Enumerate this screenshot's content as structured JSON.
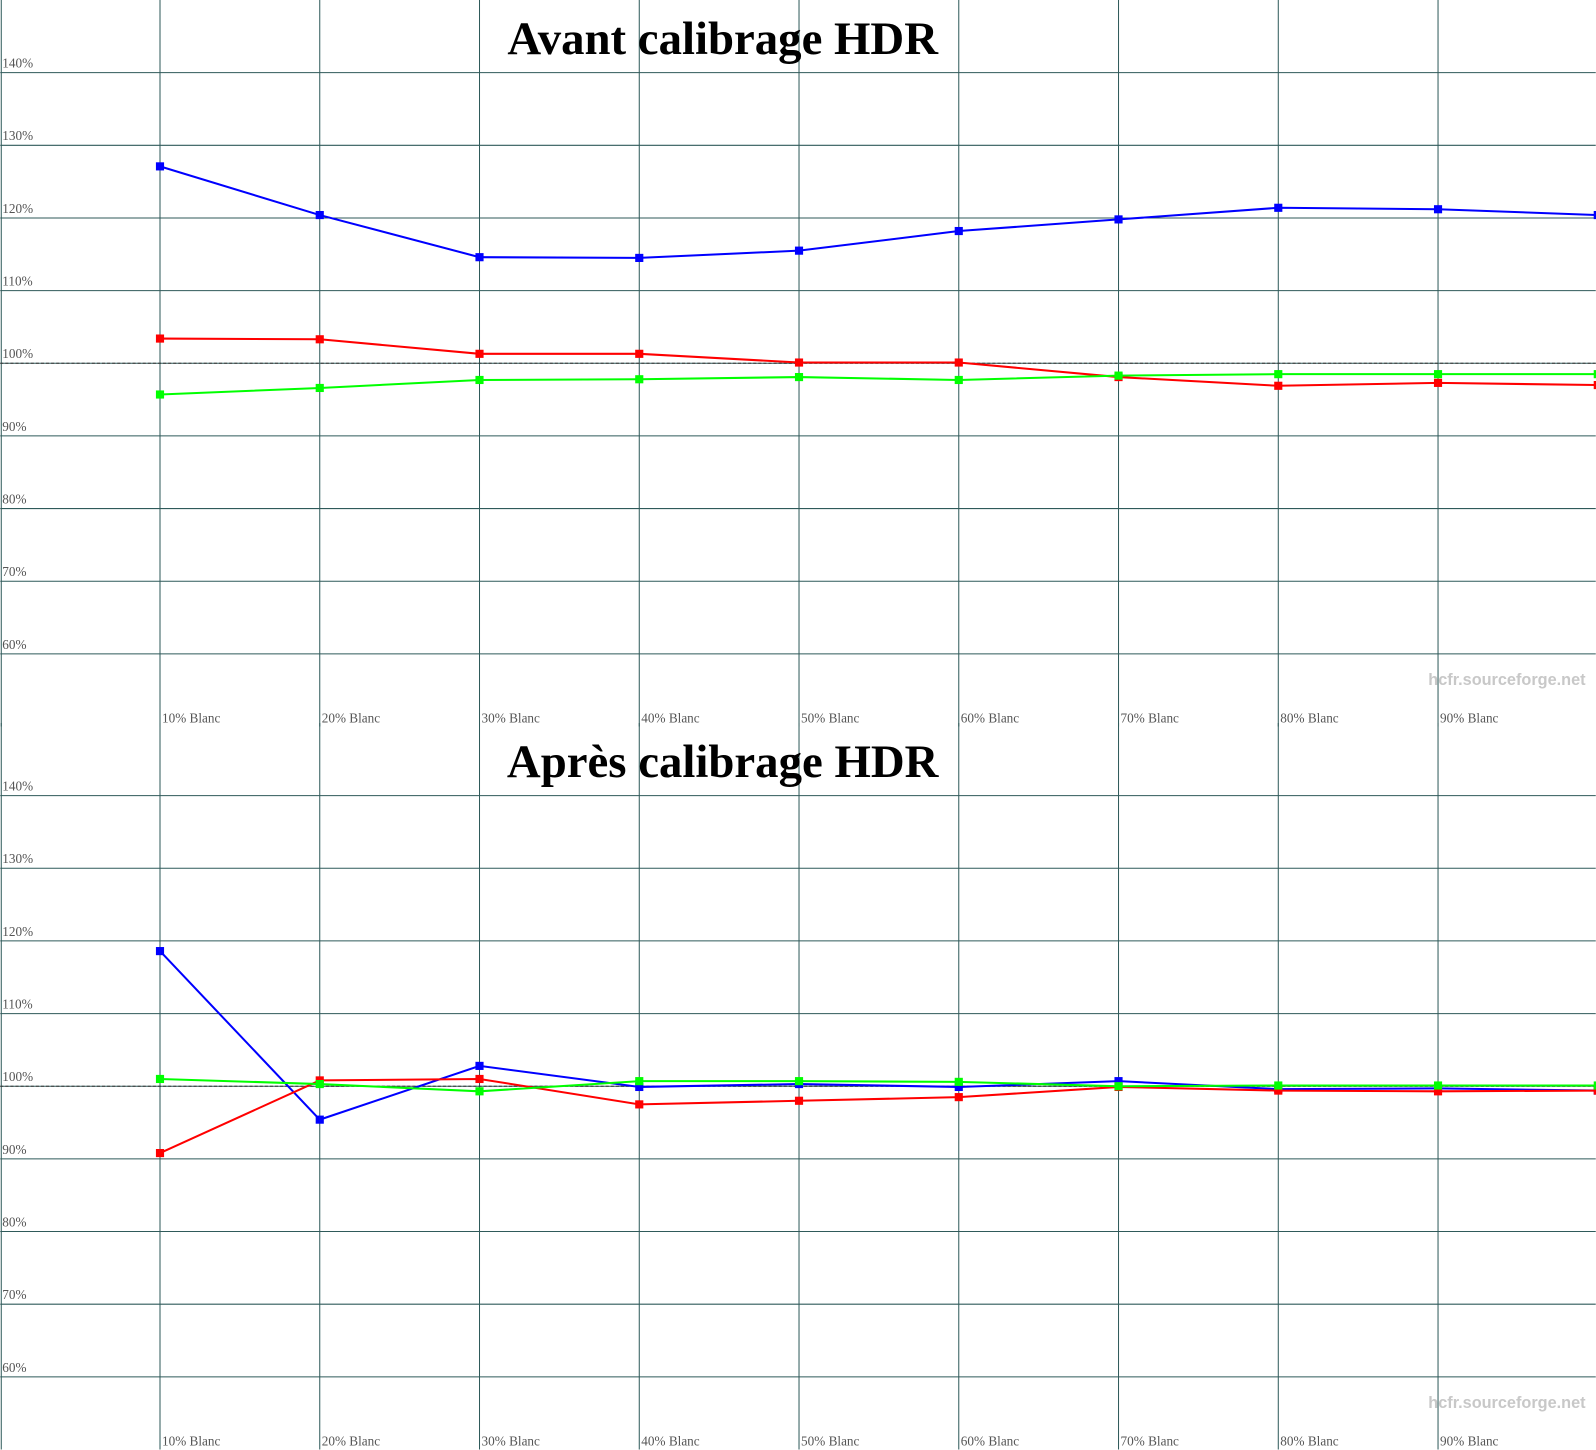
{
  "chart_data": [
    {
      "type": "line",
      "title": "Avant calibrage HDR",
      "watermark": "hcfr.sourceforge.net",
      "categories": [
        "10% Blanc",
        "20% Blanc",
        "30% Blanc",
        "40% Blanc",
        "50% Blanc",
        "60% Blanc",
        "70% Blanc",
        "80% Blanc",
        "90% Blanc",
        null
      ],
      "series": [
        {
          "color": "#0000ff",
          "values": [
            127.1,
            120.4,
            114.6,
            114.5,
            115.5,
            118.2,
            119.8,
            121.4,
            121.2,
            120.4
          ]
        },
        {
          "color": "#ff0000",
          "values": [
            103.4,
            103.3,
            101.3,
            101.3,
            100.1,
            100.1,
            98.1,
            96.9,
            97.3,
            97.0
          ]
        },
        {
          "color": "#00ff00",
          "values": [
            95.7,
            96.6,
            97.7,
            97.8,
            98.1,
            97.7,
            98.3,
            98.5,
            98.5,
            98.5
          ]
        }
      ],
      "ylim": [
        50,
        150
      ],
      "yticks": [
        {
          "value": 60,
          "label": "60%"
        },
        {
          "value": 70,
          "label": "70%"
        },
        {
          "value": 80,
          "label": "80%"
        },
        {
          "value": 90,
          "label": "90%"
        },
        {
          "value": 100,
          "label": "100%"
        },
        {
          "value": 110,
          "label": "110%"
        },
        {
          "value": 120,
          "label": "120%"
        },
        {
          "value": 130,
          "label": "130%"
        },
        {
          "value": 140,
          "label": "140%"
        }
      ],
      "reference_line": 100,
      "grid": true
    },
    {
      "type": "line",
      "title": "Après calibrage HDR",
      "watermark": "hcfr.sourceforge.net",
      "categories": [
        "10% Blanc",
        "20% Blanc",
        "30% Blanc",
        "40% Blanc",
        "50% Blanc",
        "60% Blanc",
        "70% Blanc",
        "80% Blanc",
        "90% Blanc",
        null
      ],
      "series": [
        {
          "color": "#0000ff",
          "values": [
            118.6,
            95.4,
            102.8,
            99.9,
            100.3,
            99.9,
            100.7,
            99.6,
            99.7,
            99.4
          ]
        },
        {
          "color": "#ff0000",
          "values": [
            90.8,
            100.8,
            101.0,
            97.5,
            98.0,
            98.5,
            99.9,
            99.4,
            99.3,
            99.4
          ]
        },
        {
          "color": "#00ff00",
          "values": [
            101.0,
            100.3,
            99.3,
            100.7,
            100.7,
            100.6,
            100.0,
            100.1,
            100.1,
            100.1
          ]
        }
      ],
      "ylim": [
        50,
        150
      ],
      "yticks": [
        {
          "value": 60,
          "label": "60%"
        },
        {
          "value": 70,
          "label": "70%"
        },
        {
          "value": 80,
          "label": "80%"
        },
        {
          "value": 90,
          "label": "90%"
        },
        {
          "value": 100,
          "label": "100%"
        },
        {
          "value": 110,
          "label": "110%"
        },
        {
          "value": 120,
          "label": "120%"
        },
        {
          "value": 130,
          "label": "130%"
        },
        {
          "value": 140,
          "label": "140%"
        }
      ],
      "reference_line": 100,
      "grid": true
    }
  ]
}
